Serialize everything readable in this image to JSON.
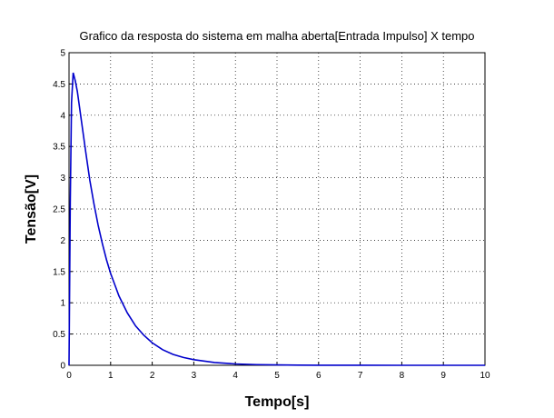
{
  "chart_data": {
    "type": "line",
    "title": "Grafico da resposta do sistema em malha aberta[Entrada Impulso] X tempo",
    "xlabel": "Tempo[s]",
    "ylabel": "Tensão[V]",
    "xlim": [
      0,
      10
    ],
    "ylim": [
      0,
      5
    ],
    "xticks": [
      "0",
      "1",
      "2",
      "3",
      "4",
      "5",
      "6",
      "7",
      "8",
      "9",
      "10"
    ],
    "yticks": [
      "0",
      "0.5",
      "1",
      "1.5",
      "2",
      "2.5",
      "3",
      "3.5",
      "4",
      "4.5",
      "5"
    ],
    "grid": true,
    "series": [
      {
        "color": "#0000cc",
        "x": [
          0,
          0.03,
          0.06,
          0.1,
          0.15,
          0.2,
          0.3,
          0.4,
          0.5,
          0.6,
          0.7,
          0.8,
          0.9,
          1.0,
          1.2,
          1.4,
          1.6,
          1.8,
          2.0,
          2.25,
          2.5,
          2.75,
          3.0,
          3.5,
          4.0,
          4.5,
          5.0,
          5.5,
          6.0,
          7.0,
          8.0,
          9.0,
          10.0
        ],
        "y": [
          0,
          2.6,
          4.2,
          4.68,
          4.55,
          4.38,
          3.9,
          3.42,
          2.96,
          2.58,
          2.24,
          1.95,
          1.69,
          1.47,
          1.11,
          0.84,
          0.63,
          0.48,
          0.36,
          0.25,
          0.175,
          0.125,
          0.09,
          0.045,
          0.022,
          0.011,
          0.006,
          0.003,
          0.0015,
          0.0004,
          0.0001,
          2e-05,
          0
        ]
      }
    ]
  }
}
